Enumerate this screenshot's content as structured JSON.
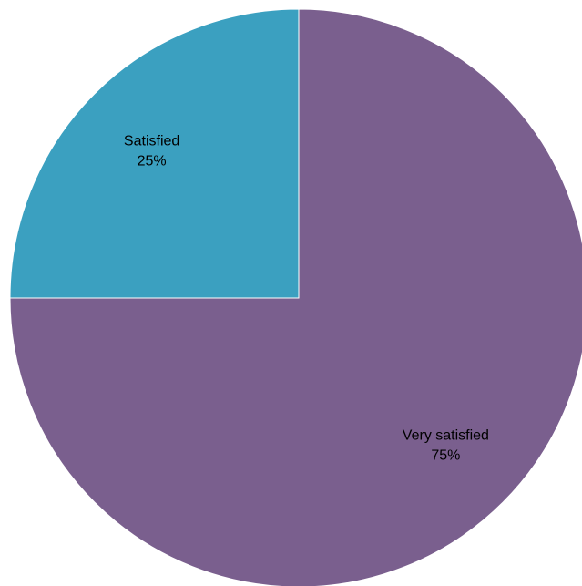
{
  "chart_data": {
    "type": "pie",
    "title": "",
    "start_angle_deg": 0,
    "direction": "clockwise",
    "legend": "none",
    "slices": [
      {
        "name": "Very satisfied",
        "value": 75,
        "value_label": "75%",
        "color": "#7a5f8e"
      },
      {
        "name": "Satisfied",
        "value": 25,
        "value_label": "25%",
        "color": "#3ba0c0"
      }
    ]
  }
}
